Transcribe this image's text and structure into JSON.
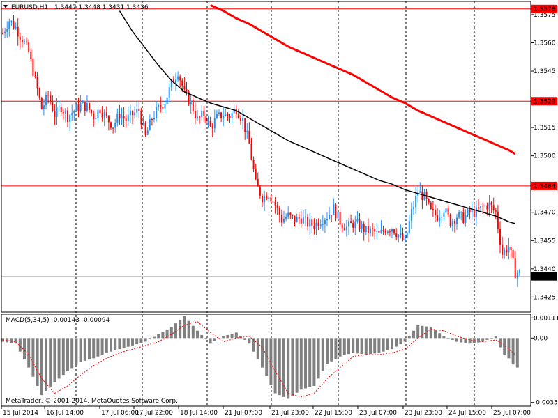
{
  "header": {
    "symbol": "EURUSD,H1",
    "ohlc": "1.3447 1.3448 1.3431 1.3436"
  },
  "macd_header": "MACD(5,34,5) -0.00143 -0.00094",
  "copyright": "MetaTrader, © 2001-2014, MetaQuotes Software Corp.",
  "chart_data": {
    "type": "candlestick",
    "price_axis": {
      "ticks": [
        1.3425,
        1.344,
        1.3455,
        1.347,
        1.3485,
        1.35,
        1.3515,
        1.353,
        1.3545,
        1.356,
        1.3575
      ],
      "tick_labels": [
        "1.3425",
        "1.3440",
        "1.3455",
        "1.3470",
        "",
        "1.3500",
        "1.3515",
        "",
        "1.3545",
        "1.3560",
        "1.3575"
      ],
      "range": [
        1.3417,
        1.3582
      ]
    },
    "macd_axis": {
      "ticks": [
        0.0011,
        0.0,
        -0.0035
      ],
      "tick_labels": [
        "0.00111",
        "0.00",
        "-0.0035"
      ],
      "range": [
        -0.0037,
        0.0013
      ]
    },
    "time_labels": [
      "15 Jul 2014",
      "16 Jul 14:00",
      "17 Jul 06:00",
      "17 Jul 22:00",
      "18 Jul 14:00",
      "21 Jul 07:00",
      "21 Jul 23:00",
      "22 Jul 15:00",
      "23 Jul 07:00",
      "23 Jul 23:00",
      "24 Jul 15:00",
      "25 Jul 07:00"
    ],
    "levels": [
      {
        "value": 1.3578,
        "label": "1.3578",
        "color": "#ff0000"
      },
      {
        "value": 1.3529,
        "label": "1.3529",
        "color": "#ff0000"
      },
      {
        "value": 1.3484,
        "label": "1.3484",
        "color": "#ff0000"
      }
    ],
    "current_price": {
      "value": 1.3436,
      "label": "1.3436"
    },
    "price_path": [
      [
        0,
        1.3565
      ],
      [
        3,
        1.3572
      ],
      [
        6,
        1.3568
      ],
      [
        9,
        1.3562
      ],
      [
        12,
        1.3555
      ],
      [
        15,
        1.354
      ],
      [
        18,
        1.3525
      ],
      [
        21,
        1.3532
      ],
      [
        24,
        1.3522
      ],
      [
        27,
        1.3526
      ],
      [
        30,
        1.3521
      ],
      [
        33,
        1.3524
      ],
      [
        36,
        1.3527
      ],
      [
        39,
        1.3526
      ],
      [
        42,
        1.3521
      ],
      [
        45,
        1.3525
      ],
      [
        48,
        1.352
      ],
      [
        51,
        1.3516
      ],
      [
        54,
        1.3522
      ],
      [
        57,
        1.3519
      ],
      [
        60,
        1.3522
      ],
      [
        63,
        1.3524
      ],
      [
        66,
        1.351
      ],
      [
        69,
        1.352
      ],
      [
        72,
        1.3525
      ],
      [
        75,
        1.3529
      ],
      [
        78,
        1.3538
      ],
      [
        81,
        1.3545
      ],
      [
        84,
        1.3533
      ],
      [
        87,
        1.3528
      ],
      [
        90,
        1.3519
      ],
      [
        93,
        1.3522
      ],
      [
        96,
        1.3515
      ],
      [
        99,
        1.352
      ],
      [
        102,
        1.3522
      ],
      [
        105,
        1.3521
      ],
      [
        108,
        1.3525
      ],
      [
        111,
        1.3519
      ],
      [
        114,
        1.3506
      ],
      [
        117,
        1.3485
      ],
      [
        120,
        1.3478
      ],
      [
        123,
        1.348
      ],
      [
        126,
        1.3474
      ],
      [
        129,
        1.3466
      ],
      [
        132,
        1.3468
      ],
      [
        135,
        1.3466
      ],
      [
        138,
        1.3467
      ],
      [
        141,
        1.3464
      ],
      [
        144,
        1.3463
      ],
      [
        147,
        1.3466
      ],
      [
        150,
        1.3468
      ],
      [
        153,
        1.3472
      ],
      [
        156,
        1.3465
      ],
      [
        159,
        1.3462
      ],
      [
        162,
        1.3464
      ],
      [
        165,
        1.3463
      ],
      [
        168,
        1.346
      ],
      [
        171,
        1.346
      ],
      [
        174,
        1.3458
      ],
      [
        177,
        1.3461
      ],
      [
        180,
        1.3462
      ],
      [
        183,
        1.3458
      ],
      [
        186,
        1.3454
      ],
      [
        189,
        1.347
      ],
      [
        192,
        1.3481
      ],
      [
        195,
        1.3478
      ],
      [
        198,
        1.347
      ],
      [
        201,
        1.3468
      ],
      [
        204,
        1.3472
      ],
      [
        207,
        1.3465
      ],
      [
        210,
        1.3468
      ],
      [
        213,
        1.3467
      ],
      [
        216,
        1.347
      ],
      [
        219,
        1.347
      ],
      [
        222,
        1.3473
      ],
      [
        225,
        1.3474
      ],
      [
        228,
        1.347
      ],
      [
        231,
        1.3448
      ],
      [
        234,
        1.3452
      ],
      [
        237,
        1.3438
      ]
    ],
    "ma_black": [
      [
        54,
        1.3577
      ],
      [
        60,
        1.3566
      ],
      [
        66,
        1.3557
      ],
      [
        72,
        1.3548
      ],
      [
        78,
        1.354
      ],
      [
        84,
        1.3534
      ],
      [
        90,
        1.3531
      ],
      [
        96,
        1.3528
      ],
      [
        102,
        1.3526
      ],
      [
        108,
        1.3524
      ],
      [
        114,
        1.352
      ],
      [
        120,
        1.3516
      ],
      [
        126,
        1.3512
      ],
      [
        132,
        1.3508
      ],
      [
        138,
        1.3505
      ],
      [
        144,
        1.3502
      ],
      [
        150,
        1.3499
      ],
      [
        156,
        1.3496
      ],
      [
        162,
        1.3493
      ],
      [
        168,
        1.349
      ],
      [
        174,
        1.3487
      ],
      [
        180,
        1.3485
      ],
      [
        186,
        1.3482
      ],
      [
        192,
        1.348
      ],
      [
        198,
        1.3478
      ],
      [
        204,
        1.3476
      ],
      [
        210,
        1.3474
      ],
      [
        216,
        1.3472
      ],
      [
        222,
        1.347
      ],
      [
        228,
        1.3468
      ],
      [
        234,
        1.3465
      ],
      [
        237,
        1.3464
      ]
    ],
    "ma_red": [
      [
        96,
        1.358
      ],
      [
        102,
        1.3577
      ],
      [
        108,
        1.3573
      ],
      [
        114,
        1.357
      ],
      [
        120,
        1.3566
      ],
      [
        126,
        1.3562
      ],
      [
        132,
        1.3558
      ],
      [
        138,
        1.3555
      ],
      [
        144,
        1.3552
      ],
      [
        150,
        1.3549
      ],
      [
        156,
        1.3546
      ],
      [
        162,
        1.3543
      ],
      [
        168,
        1.3539
      ],
      [
        174,
        1.3535
      ],
      [
        180,
        1.3531
      ],
      [
        186,
        1.3528
      ],
      [
        192,
        1.3524
      ],
      [
        198,
        1.3521
      ],
      [
        204,
        1.3518
      ],
      [
        210,
        1.3515
      ],
      [
        216,
        1.3512
      ],
      [
        222,
        1.3509
      ],
      [
        228,
        1.3506
      ],
      [
        234,
        1.3503
      ],
      [
        237,
        1.3501
      ]
    ],
    "macd_path": [
      [
        0,
        -0.0002
      ],
      [
        6,
        -0.0003
      ],
      [
        12,
        -0.0016
      ],
      [
        18,
        -0.0031
      ],
      [
        24,
        -0.0024
      ],
      [
        30,
        -0.0018
      ],
      [
        36,
        -0.0013
      ],
      [
        42,
        -0.0011
      ],
      [
        48,
        -0.0008
      ],
      [
        54,
        -0.0006
      ],
      [
        60,
        -0.0004
      ],
      [
        66,
        -0.0002
      ],
      [
        72,
        0.0002
      ],
      [
        78,
        0.0006
      ],
      [
        84,
        0.0012
      ],
      [
        90,
        0.0004
      ],
      [
        96,
        -0.0003
      ],
      [
        102,
        0.0001
      ],
      [
        108,
        0.0003
      ],
      [
        114,
        -0.0003
      ],
      [
        120,
        -0.0016
      ],
      [
        126,
        -0.003
      ],
      [
        132,
        -0.0033
      ],
      [
        138,
        -0.0028
      ],
      [
        144,
        -0.0026
      ],
      [
        150,
        -0.0014
      ],
      [
        156,
        -0.001
      ],
      [
        162,
        -0.0008
      ],
      [
        168,
        -0.0009
      ],
      [
        174,
        -0.0008
      ],
      [
        180,
        -0.0006
      ],
      [
        186,
        -0.0002
      ],
      [
        192,
        0.0007
      ],
      [
        198,
        0.0006
      ],
      [
        204,
        0.0001
      ],
      [
        210,
        -0.0002
      ],
      [
        216,
        -0.0003
      ],
      [
        222,
        -0.0002
      ],
      [
        228,
        0.0001
      ],
      [
        231,
        -0.0008
      ],
      [
        234,
        -0.0011
      ],
      [
        237,
        -0.0016
      ]
    ],
    "signal_path": [
      [
        0,
        -0.0001
      ],
      [
        6,
        -0.0002
      ],
      [
        12,
        -0.0009
      ],
      [
        18,
        -0.0022
      ],
      [
        24,
        -0.003
      ],
      [
        30,
        -0.0026
      ],
      [
        36,
        -0.002
      ],
      [
        42,
        -0.0015
      ],
      [
        48,
        -0.0011
      ],
      [
        54,
        -0.0008
      ],
      [
        60,
        -0.0006
      ],
      [
        66,
        -0.0004
      ],
      [
        72,
        -0.0002
      ],
      [
        78,
        0.0002
      ],
      [
        84,
        0.0007
      ],
      [
        90,
        0.0009
      ],
      [
        96,
        0.0003
      ],
      [
        102,
        -0.0002
      ],
      [
        108,
        0.0
      ],
      [
        114,
        0.0001
      ],
      [
        120,
        -0.0005
      ],
      [
        126,
        -0.0018
      ],
      [
        132,
        -0.003
      ],
      [
        138,
        -0.0032
      ],
      [
        144,
        -0.003
      ],
      [
        150,
        -0.0022
      ],
      [
        156,
        -0.0016
      ],
      [
        162,
        -0.001
      ],
      [
        168,
        -0.0009
      ],
      [
        174,
        -0.0009
      ],
      [
        180,
        -0.0008
      ],
      [
        186,
        -0.0006
      ],
      [
        192,
        0.0
      ],
      [
        198,
        0.0005
      ],
      [
        204,
        0.0004
      ],
      [
        210,
        0.0001
      ],
      [
        216,
        -0.0001
      ],
      [
        222,
        -0.0002
      ],
      [
        228,
        -0.0001
      ],
      [
        231,
        -0.0003
      ],
      [
        234,
        -0.0006
      ],
      [
        237,
        -0.0009
      ]
    ],
    "colors": {
      "bull": "#1e90ff",
      "bear": "#ff0000",
      "ma_black": "#000000",
      "ma_red": "#ff0000",
      "macd_bar": "#808080",
      "signal": "#ff0000",
      "grid": "#000000",
      "level": "#ff0000",
      "current": "#c0c0c0",
      "label_bg": "#ff0000",
      "label_current_bg": "#000000"
    }
  }
}
